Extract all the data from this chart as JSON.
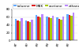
{
  "groups": [
    "g1",
    "g2",
    "g3",
    "g4",
    "g5",
    "g6"
  ],
  "series": [
    {
      "label": "toluene",
      "color": "#66aaff",
      "values": [
        55,
        52,
        65,
        62,
        60,
        68
      ]
    },
    {
      "label": "MEK",
      "color": "#dd2222",
      "values": [
        52,
        50,
        62,
        60,
        55,
        65
      ]
    },
    {
      "label": "acetone",
      "color": "#aacc00",
      "values": [
        50,
        48,
        60,
        58,
        53,
        63
      ]
    },
    {
      "label": "ethanol",
      "color": "#bb88ff",
      "values": [
        57,
        54,
        67,
        64,
        62,
        72
      ]
    }
  ],
  "ylim": [
    0,
    80
  ],
  "yticks": [
    0,
    20,
    40,
    60,
    80
  ],
  "bar_width": 0.19,
  "background_color": "#ffffff",
  "legend_fontsize": 3.2,
  "tick_fontsize": 2.8,
  "ytick_fontsize": 2.8,
  "grid_color": "#dddddd"
}
